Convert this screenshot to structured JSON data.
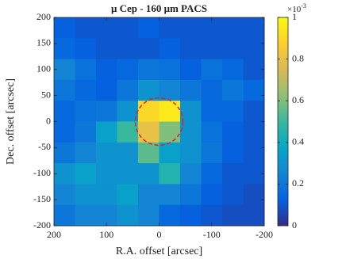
{
  "chart_data": {
    "type": "heatmap",
    "title": "μ Cep - 160 μm PACS",
    "x_label": "R.A. offset [arcsec]",
    "y_label": "Dec. offset [arcsec]",
    "colorbar_scale": {
      "base": "×10",
      "exponent": "-3"
    },
    "colormap": "parula",
    "x": [
      180,
      140,
      100,
      60,
      20,
      -20,
      -60,
      -100,
      -140,
      -180
    ],
    "y": [
      180,
      140,
      100,
      60,
      20,
      -20,
      -60,
      -100,
      -140,
      -180
    ],
    "z": [
      [
        0.12,
        0.1,
        0.1,
        0.1,
        0.12,
        0.1,
        0.1,
        0.1,
        0.1,
        0.1
      ],
      [
        0.15,
        0.12,
        0.1,
        0.1,
        0.1,
        0.12,
        0.1,
        0.1,
        0.1,
        0.1
      ],
      [
        0.25,
        0.18,
        0.12,
        0.15,
        0.2,
        0.18,
        0.12,
        0.18,
        0.15,
        0.1
      ],
      [
        0.2,
        0.15,
        0.12,
        0.2,
        0.3,
        0.25,
        0.2,
        0.15,
        0.2,
        0.15
      ],
      [
        0.15,
        0.18,
        0.2,
        0.3,
        0.9,
        0.95,
        0.3,
        0.15,
        0.15,
        0.1
      ],
      [
        0.15,
        0.2,
        0.35,
        0.5,
        0.8,
        0.6,
        0.3,
        0.18,
        0.12,
        0.1
      ],
      [
        0.2,
        0.25,
        0.3,
        0.3,
        0.55,
        0.35,
        0.3,
        0.2,
        0.12,
        0.1
      ],
      [
        0.3,
        0.35,
        0.3,
        0.3,
        0.3,
        0.45,
        0.25,
        0.15,
        0.1,
        0.1
      ],
      [
        0.25,
        0.3,
        0.3,
        0.35,
        0.25,
        0.25,
        0.2,
        0.12,
        0.1,
        0.08
      ],
      [
        0.2,
        0.25,
        0.25,
        0.3,
        0.25,
        0.15,
        0.12,
        0.1,
        0.08,
        0.08
      ]
    ],
    "xlim": [
      200,
      -200
    ],
    "xticks": [
      200,
      100,
      0,
      -100,
      -200
    ],
    "ylim": [
      -200,
      200
    ],
    "yticks": [
      -200,
      -150,
      -100,
      -50,
      0,
      50,
      100,
      150,
      200
    ],
    "clim": [
      0,
      1
    ],
    "cticks": [
      0,
      0.2,
      0.4,
      0.6,
      0.8,
      1
    ]
  }
}
